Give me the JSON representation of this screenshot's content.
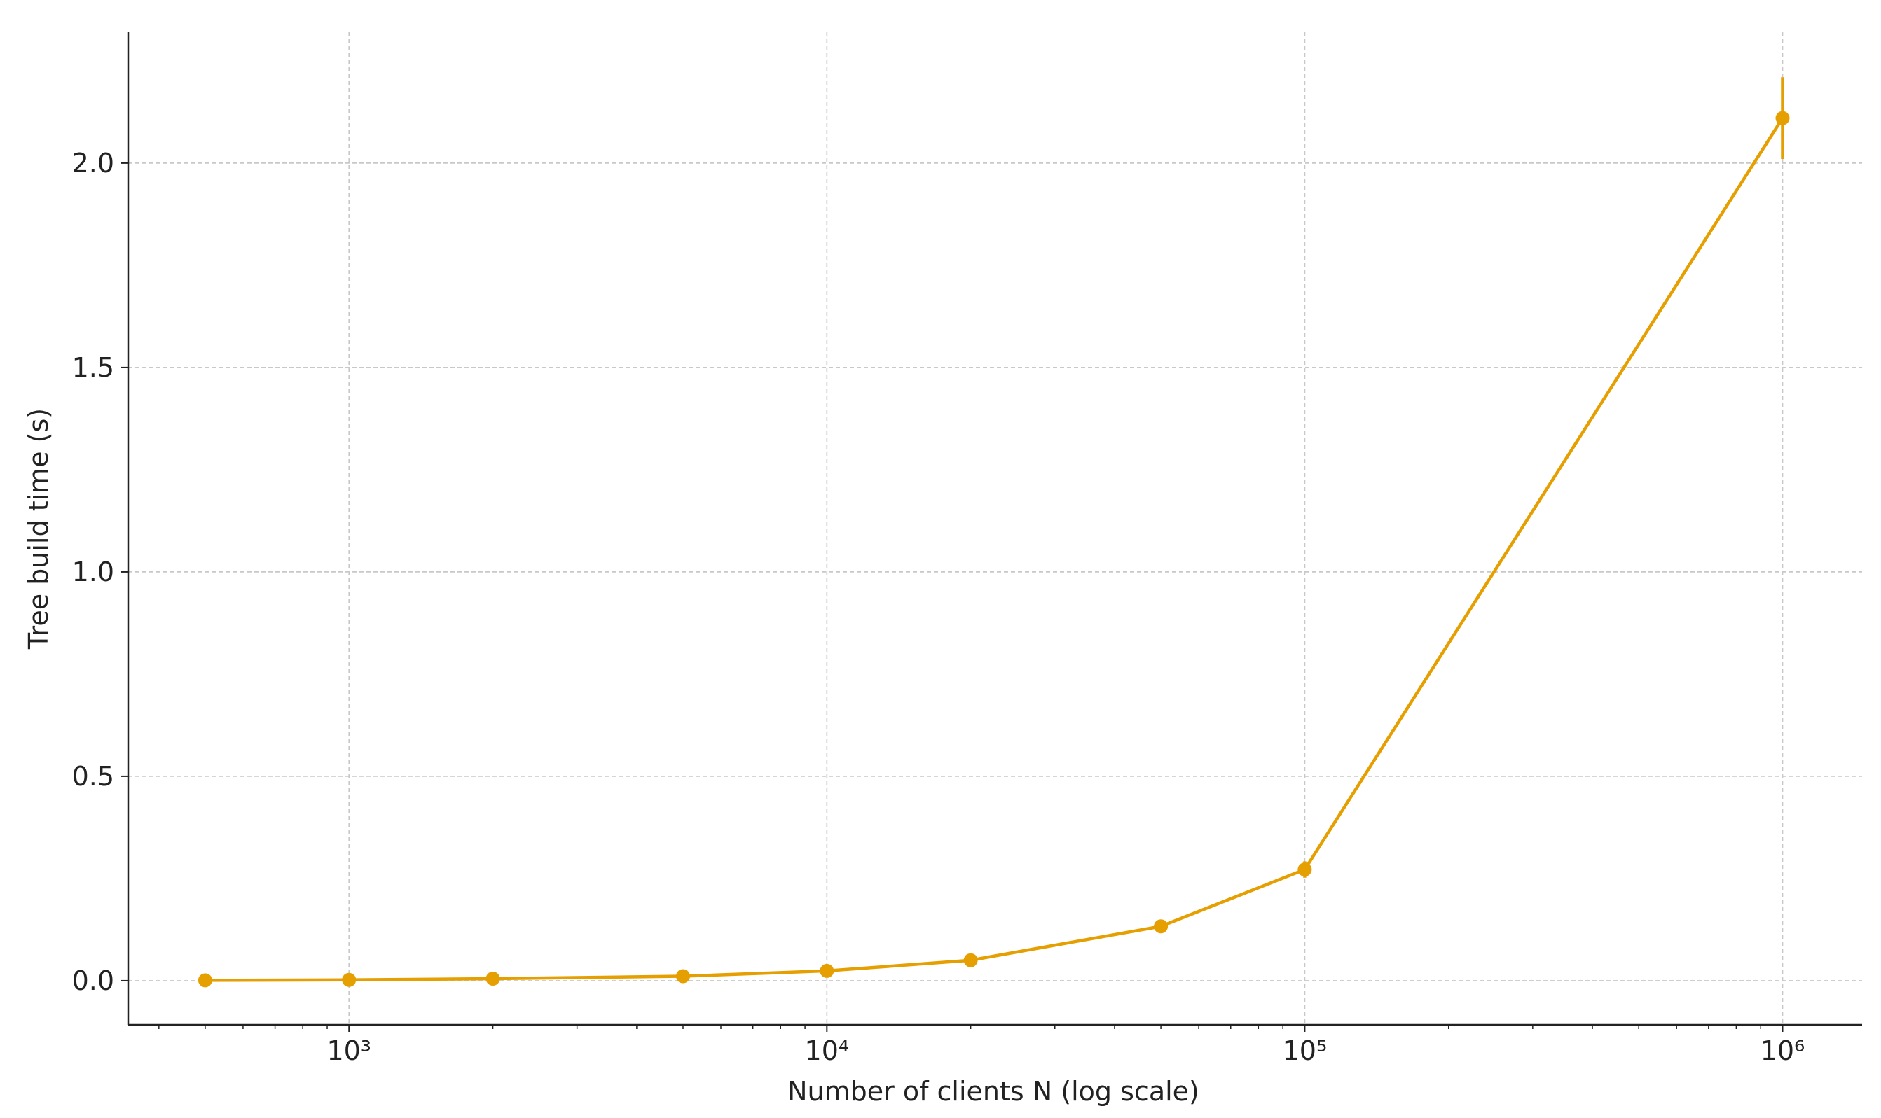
{
  "chart_data": {
    "type": "line",
    "xlabel": "Number of clients N (log scale)",
    "ylabel": "Tree build time (s)",
    "x": [
      500,
      1000,
      2000,
      5000,
      10000,
      20000,
      50000,
      100000,
      1000000
    ],
    "series": [
      {
        "color": "#e69f00",
        "values": [
          0.001,
          0.002,
          0.005,
          0.011,
          0.024,
          0.05,
          0.133,
          0.272,
          2.11
        ],
        "errors": [
          0.0005,
          0.0005,
          0.001,
          0.002,
          0.003,
          0.004,
          0.01,
          0.02,
          0.1
        ]
      }
    ],
    "xscale": "log",
    "xlim": [
      345,
      1467000
    ],
    "ylim": [
      -0.108,
      2.32
    ],
    "xticks": [
      {
        "value": 1000,
        "label": "10³"
      },
      {
        "value": 10000,
        "label": "10⁴"
      },
      {
        "value": 100000,
        "label": "10⁵"
      },
      {
        "value": 1000000,
        "label": "10⁶"
      }
    ],
    "xminorticks": [
      400,
      500,
      600,
      700,
      800,
      900,
      2000,
      3000,
      4000,
      5000,
      6000,
      7000,
      8000,
      9000,
      20000,
      30000,
      40000,
      50000,
      60000,
      70000,
      80000,
      90000,
      200000,
      300000,
      400000,
      500000,
      600000,
      700000,
      800000,
      900000
    ],
    "yticks": [
      {
        "value": 0,
        "label": "0.0"
      },
      {
        "value": 0.5,
        "label": "0.5"
      },
      {
        "value": 1,
        "label": "1.0"
      },
      {
        "value": 1.5,
        "label": "1.5"
      },
      {
        "value": 2,
        "label": "2.0"
      }
    ],
    "grid": true
  }
}
